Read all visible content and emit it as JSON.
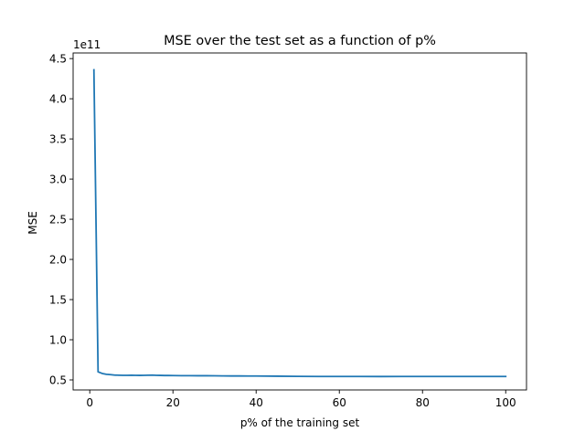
{
  "chart_data": {
    "type": "line",
    "title": "MSE over the test set as a function of p%",
    "xlabel": "p% of the training set",
    "ylabel": "MSE",
    "y_offset_label": "1e11",
    "y_scale_factor": 100000000000.0,
    "xlim": [
      -4.0,
      105.0
    ],
    "ylim": [
      0.375,
      4.57
    ],
    "x_ticks": [
      0,
      20,
      40,
      60,
      80,
      100
    ],
    "y_ticks": [
      0.5,
      1.0,
      1.5,
      2.0,
      2.5,
      3.0,
      3.5,
      4.0,
      4.5
    ],
    "grid": false,
    "series": [
      {
        "color": "#1f77b4",
        "x": [
          1,
          2,
          3,
          4,
          5,
          6,
          7,
          8,
          9,
          10,
          11,
          12,
          13,
          14,
          15,
          16,
          17,
          18,
          19,
          20,
          22,
          24,
          26,
          28,
          30,
          32,
          34,
          36,
          38,
          40,
          45,
          50,
          55,
          60,
          65,
          70,
          75,
          80,
          85,
          90,
          95,
          100
        ],
        "y": [
          4.36,
          0.6,
          0.58,
          0.57,
          0.565,
          0.56,
          0.558,
          0.557,
          0.557,
          0.558,
          0.557,
          0.556,
          0.557,
          0.558,
          0.56,
          0.557,
          0.556,
          0.555,
          0.555,
          0.554,
          0.553,
          0.553,
          0.552,
          0.552,
          0.551,
          0.55,
          0.549,
          0.549,
          0.548,
          0.548,
          0.546,
          0.544,
          0.543,
          0.543,
          0.543,
          0.542,
          0.543,
          0.543,
          0.543,
          0.543,
          0.543,
          0.543
        ]
      }
    ]
  }
}
